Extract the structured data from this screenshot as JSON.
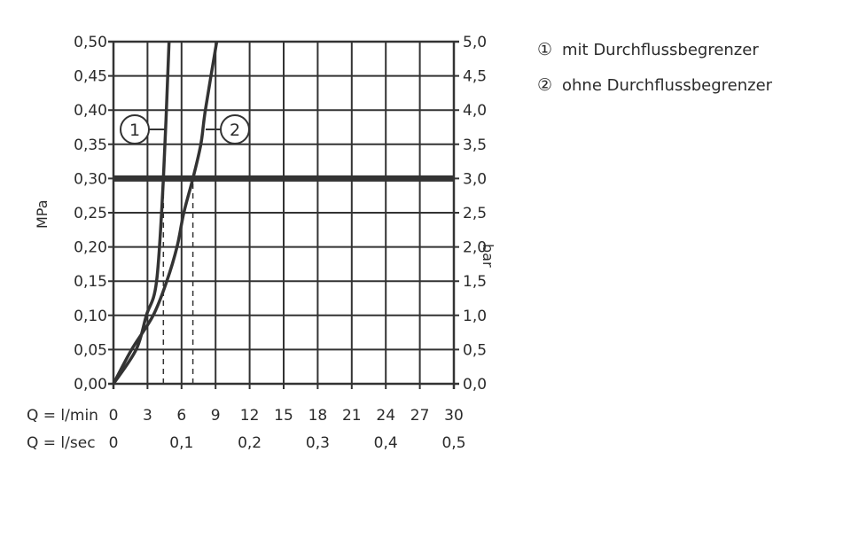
{
  "chart_data": {
    "type": "line",
    "x_axis": {
      "label": "Q = l/min",
      "range": [
        0,
        30
      ],
      "ticks": [
        0,
        3,
        6,
        9,
        12,
        15,
        18,
        21,
        24,
        27,
        30
      ],
      "tick_labels": [
        "0",
        "3",
        "6",
        "9",
        "12",
        "15",
        "18",
        "21",
        "24",
        "27",
        "30"
      ]
    },
    "x_axis_secondary": {
      "label": "Q = l/sec",
      "tick_values_lmin": [
        0,
        6,
        12,
        18,
        24,
        30
      ],
      "tick_labels": [
        "0",
        "0,1",
        "0,2",
        "0,3",
        "0,4",
        "0,5"
      ]
    },
    "y_axis": {
      "label": "MPa",
      "range": [
        0,
        0.5
      ],
      "ticks": [
        0,
        0.05,
        0.1,
        0.15,
        0.2,
        0.25,
        0.3,
        0.35,
        0.4,
        0.45,
        0.5
      ],
      "tick_labels": [
        "0,00",
        "0,05",
        "0,10",
        "0,15",
        "0,20",
        "0,25",
        "0,30",
        "0,35",
        "0,40",
        "0,45",
        "0,50"
      ]
    },
    "y_axis_secondary": {
      "label": "bar",
      "tick_labels": [
        "0,0",
        "0,5",
        "1,0",
        "1,5",
        "2,0",
        "2,5",
        "3,0",
        "3,5",
        "4,0",
        "4,5",
        "5,0"
      ]
    },
    "grid": true,
    "reference_line": {
      "y": 0.3
    },
    "series": [
      {
        "marker": "1",
        "name": "mit Durchflussbegrenzer",
        "x": [
          0,
          2.0,
          2.9,
          3.8,
          4.4,
          4.9
        ],
        "y": [
          0,
          0.05,
          0.1,
          0.15,
          0.3,
          0.5
        ],
        "drop_line_x": 4.4
      },
      {
        "marker": "2",
        "name": "ohne Durchflussbegrenzer",
        "x": [
          0,
          1.6,
          3.5,
          4.7,
          5.6,
          6.2,
          7.0,
          7.7,
          8.1,
          9.1
        ],
        "y": [
          0,
          0.05,
          0.1,
          0.15,
          0.2,
          0.25,
          0.3,
          0.35,
          0.4,
          0.5
        ],
        "drop_line_x": 7.0
      }
    ],
    "legend": {
      "placement": "top-right",
      "entries": [
        {
          "symbol": "①",
          "text": "mit Durchflussbegrenzer"
        },
        {
          "symbol": "②",
          "text": "ohne Durchflussbegrenzer"
        }
      ]
    },
    "colors": {
      "line": "#333333",
      "grid": "#333333"
    }
  }
}
